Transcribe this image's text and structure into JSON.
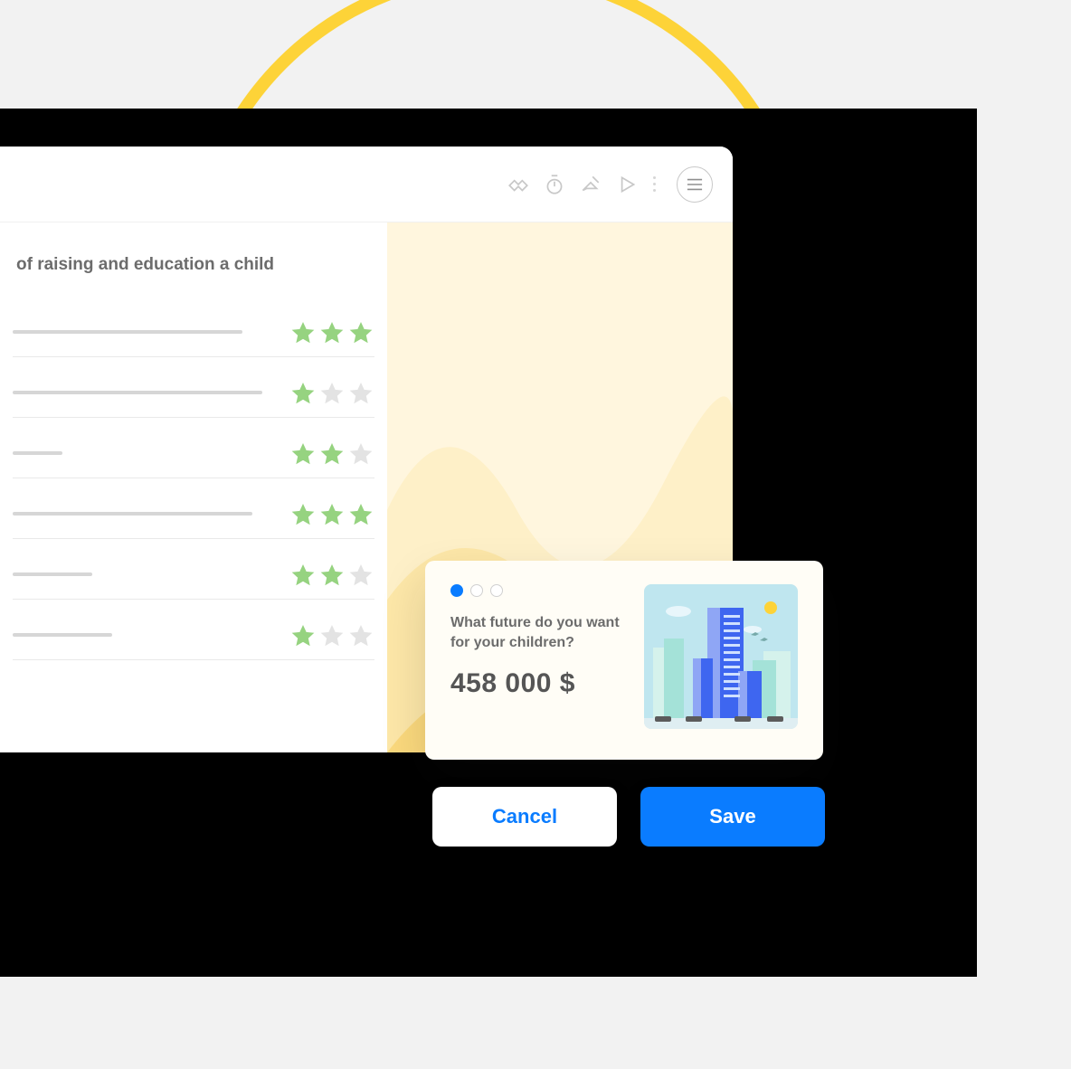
{
  "colors": {
    "pageBg": "#f2f2f2",
    "frame": "#000000",
    "accentYellow": "#fdd338",
    "accentYellowSoft": "#fbe6a5",
    "panelBg": "#ffffff",
    "rightBg": "#fff6de",
    "textMuted": "#6c6c6c",
    "barGrey": "#d6d6d6",
    "starFilled": "#96d380",
    "starEmpty": "#e3e3e3",
    "primary": "#0a7cff",
    "blob": "#6a63a8"
  },
  "toolbar": {
    "icons": [
      "handshake-icon",
      "timer-icon",
      "eraser-icon",
      "play-icon"
    ],
    "hasMoreDots": true,
    "hasBurger": true
  },
  "list": {
    "heading": "of raising and education a child",
    "rows": [
      {
        "barWidthPct": 92,
        "stars": 3
      },
      {
        "barWidthPct": 100,
        "stars": 1
      },
      {
        "barWidthPct": 20,
        "stars": 2
      },
      {
        "barWidthPct": 96,
        "stars": 3
      },
      {
        "barWidthPct": 32,
        "stars": 2
      },
      {
        "barWidthPct": 40,
        "stars": 1
      }
    ],
    "starTotal": 3
  },
  "popup": {
    "pagerCount": 3,
    "pagerActiveIndex": 0,
    "question": "What future do you want for your children?",
    "amount": "458 000 $",
    "illustration": {
      "skyColor": "#bfe6ef",
      "sunColor": "#fdd338",
      "cloudColor": "#e8f6fb",
      "buildingPrimary": "#3e66f0",
      "buildingLight": "#8fa6f5",
      "buildingTeal": "#a4e2d8",
      "buildingTealLight": "#d5f2ec",
      "groundColor": "#5b5b5b"
    }
  },
  "actions": {
    "cancel": "Cancel",
    "save": "Save"
  }
}
